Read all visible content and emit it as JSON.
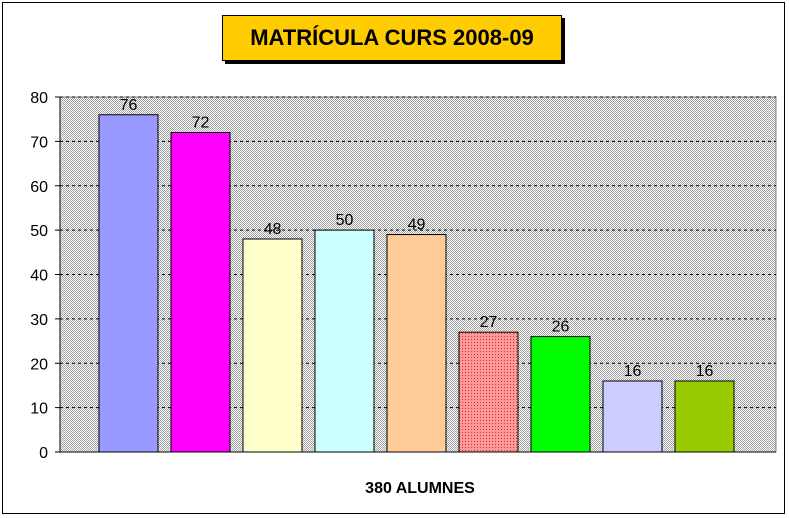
{
  "chart_data": {
    "type": "bar",
    "title": "MATRÍCULA CURS 2008-09",
    "xlabel": "380 ALUMNES",
    "ylabel": "",
    "ylim": [
      0,
      80
    ],
    "yticks": [
      0,
      10,
      20,
      30,
      40,
      50,
      60,
      70,
      80
    ],
    "values": [
      76,
      72,
      48,
      50,
      49,
      27,
      26,
      16,
      16
    ],
    "bar_colors": [
      "#9999ff",
      "#ff00ff",
      "#ffffcc",
      "#ccffff",
      "#ffcc99",
      "#ff9999",
      "#00ff00",
      "#ccccff",
      "#99cc00"
    ],
    "title_background": "#ffcc00",
    "plot_background": "#c0c0c0",
    "grid": true,
    "legend": "none"
  }
}
